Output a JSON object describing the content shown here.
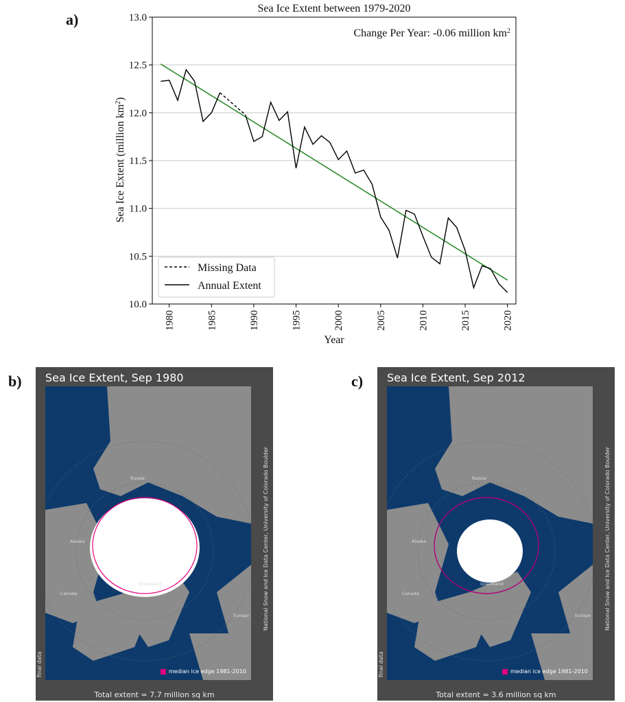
{
  "panel_labels": {
    "a": "a)",
    "b": "b)",
    "c": "c)"
  },
  "chart_data": {
    "type": "line",
    "title": "Sea Ice Extent between 1979-2020",
    "annotation": "Change Per Year: -0.06 million km²",
    "xlabel": "Year",
    "ylabel": "Sea Ice Extent (million km²)",
    "xlim": [
      1978,
      2021
    ],
    "ylim": [
      10.0,
      13.0
    ],
    "xticks": [
      "1980",
      "1985",
      "1990",
      "1995",
      "2000",
      "2005",
      "2010",
      "2015",
      "2020"
    ],
    "yticks": [
      "10.0",
      "10.5",
      "11.0",
      "11.5",
      "12.0",
      "12.5",
      "13.0"
    ],
    "grid": "horizontal",
    "legend_position": "bottom-left",
    "series": [
      {
        "name": "Annual Extent",
        "style": "solid",
        "color": "#000000",
        "segments": [
          [
            [
              1979,
              12.33
            ],
            [
              1980,
              12.34
            ],
            [
              1981,
              12.13
            ],
            [
              1982,
              12.45
            ],
            [
              1983,
              12.33
            ],
            [
              1984,
              11.91
            ],
            [
              1985,
              12.0
            ],
            [
              1986,
              12.21
            ]
          ],
          [
            [
              1989,
              11.98
            ],
            [
              1990,
              11.7
            ],
            [
              1991,
              11.75
            ],
            [
              1992,
              12.11
            ],
            [
              1993,
              11.92
            ],
            [
              1994,
              12.01
            ],
            [
              1995,
              11.42
            ],
            [
              1996,
              11.85
            ],
            [
              1997,
              11.67
            ],
            [
              1998,
              11.76
            ],
            [
              1999,
              11.69
            ],
            [
              2000,
              11.51
            ],
            [
              2001,
              11.6
            ],
            [
              2002,
              11.37
            ],
            [
              2003,
              11.4
            ],
            [
              2004,
              11.25
            ],
            [
              2005,
              10.91
            ],
            [
              2006,
              10.77
            ],
            [
              2007,
              10.48
            ],
            [
              2008,
              10.98
            ],
            [
              2009,
              10.94
            ],
            [
              2010,
              10.71
            ],
            [
              2011,
              10.49
            ],
            [
              2012,
              10.42
            ],
            [
              2013,
              10.9
            ],
            [
              2014,
              10.8
            ],
            [
              2015,
              10.56
            ],
            [
              2016,
              10.17
            ],
            [
              2017,
              10.4
            ],
            [
              2018,
              10.37
            ],
            [
              2019,
              10.21
            ],
            [
              2020,
              10.12
            ]
          ]
        ]
      },
      {
        "name": "Missing Data",
        "style": "dashed",
        "color": "#000000",
        "points": [
          [
            1986,
            12.21
          ],
          [
            1989,
            11.98
          ]
        ]
      },
      {
        "name": "trend",
        "style": "solid",
        "color": "#2e8b2e",
        "points": [
          [
            1979,
            12.51
          ],
          [
            2020,
            10.25
          ]
        ]
      }
    ]
  },
  "maps": [
    {
      "title": "Sea Ice Extent, Sep 1980",
      "footer": "Total extent = 7.7 million sq km",
      "legend": "median ice edge 1981-2010",
      "credit": "National Snow and Ice Data Center, University of Colorado Boulder",
      "final": "final data",
      "ice_extent_fraction": 1.0,
      "labels": {
        "russia": "Russia",
        "alaska": "Alaska",
        "canada": "Canada",
        "greenland": "Greenland",
        "europe": "Europe"
      }
    },
    {
      "title": "Sea Ice Extent, Sep 2012",
      "footer": "Total extent = 3.6 million sq km",
      "legend": "median ice edge 1981-2010",
      "credit": "National Snow and Ice Data Center, University of Colorado Boulder",
      "final": "final data",
      "ice_extent_fraction": 0.47,
      "labels": {
        "russia": "Russia",
        "alaska": "Alaska",
        "canada": "Canada",
        "greenland": "Greenland",
        "europe": "Europe"
      }
    }
  ],
  "colors": {
    "ocean": "#0d3a6b",
    "land": "#8c8c8c",
    "ice": "#ffffff",
    "median_edge": "#e4007c",
    "frame": "#4a4a4a"
  }
}
